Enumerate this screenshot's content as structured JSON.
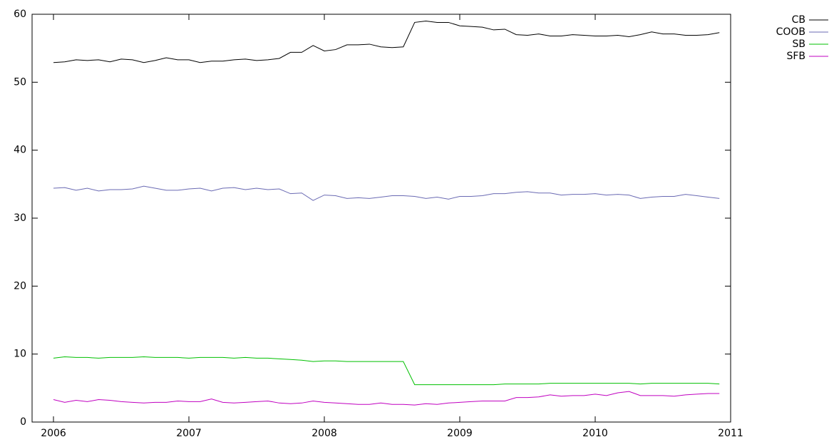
{
  "chart_data": {
    "type": "line",
    "x": [
      2006,
      2006.083,
      2006.167,
      2006.25,
      2006.333,
      2006.417,
      2006.5,
      2006.583,
      2006.667,
      2006.75,
      2006.833,
      2006.917,
      2007,
      2007.083,
      2007.167,
      2007.25,
      2007.333,
      2007.417,
      2007.5,
      2007.583,
      2007.667,
      2007.75,
      2007.833,
      2007.917,
      2008,
      2008.083,
      2008.167,
      2008.25,
      2008.333,
      2008.417,
      2008.5,
      2008.583,
      2008.667,
      2008.75,
      2008.833,
      2008.917,
      2009,
      2009.083,
      2009.167,
      2009.25,
      2009.333,
      2009.417,
      2009.5,
      2009.583,
      2009.667,
      2009.75,
      2009.833,
      2009.917,
      2010,
      2010.083,
      2010.167,
      2010.25,
      2010.333,
      2010.417,
      2010.5,
      2010.583,
      2010.667,
      2010.75,
      2010.833,
      2010.917
    ],
    "series": [
      {
        "name": "CB",
        "color": "#000000",
        "values": [
          52.9,
          53.0,
          53.3,
          53.2,
          53.3,
          53.0,
          53.4,
          53.3,
          52.9,
          53.2,
          53.6,
          53.3,
          53.3,
          52.9,
          53.1,
          53.1,
          53.3,
          53.4,
          53.2,
          53.3,
          53.5,
          54.4,
          54.4,
          55.4,
          54.6,
          54.8,
          55.5,
          55.5,
          55.6,
          55.2,
          55.1,
          55.2,
          58.8,
          59.0,
          58.8,
          58.8,
          58.3,
          58.2,
          58.1,
          57.7,
          57.8,
          57.0,
          56.9,
          57.1,
          56.8,
          56.8,
          57.0,
          56.9,
          56.8,
          56.8,
          56.9,
          56.7,
          57.0,
          57.4,
          57.1,
          57.1,
          56.9,
          56.9,
          57.0,
          57.3
        ]
      },
      {
        "name": "COOB",
        "color": "#6a6ab3",
        "values": [
          34.4,
          34.5,
          34.1,
          34.4,
          34.0,
          34.2,
          34.2,
          34.3,
          34.7,
          34.4,
          34.1,
          34.1,
          34.3,
          34.4,
          34.0,
          34.4,
          34.5,
          34.2,
          34.4,
          34.2,
          34.3,
          33.6,
          33.7,
          32.6,
          33.4,
          33.3,
          32.9,
          33.0,
          32.9,
          33.1,
          33.3,
          33.3,
          33.2,
          32.9,
          33.1,
          32.8,
          33.2,
          33.2,
          33.3,
          33.6,
          33.6,
          33.8,
          33.9,
          33.7,
          33.7,
          33.4,
          33.5,
          33.5,
          33.6,
          33.4,
          33.5,
          33.4,
          32.9,
          33.1,
          33.2,
          33.2,
          33.5,
          33.3,
          33.1,
          32.9
        ]
      },
      {
        "name": "SB",
        "color": "#00c000",
        "values": [
          9.4,
          9.6,
          9.5,
          9.5,
          9.4,
          9.5,
          9.5,
          9.5,
          9.6,
          9.5,
          9.5,
          9.5,
          9.4,
          9.5,
          9.5,
          9.5,
          9.4,
          9.5,
          9.4,
          9.4,
          9.3,
          9.2,
          9.1,
          8.9,
          9.0,
          9.0,
          8.9,
          8.9,
          8.9,
          8.9,
          8.9,
          8.9,
          5.5,
          5.5,
          5.5,
          5.5,
          5.5,
          5.5,
          5.5,
          5.5,
          5.6,
          5.6,
          5.6,
          5.6,
          5.7,
          5.7,
          5.7,
          5.7,
          5.7,
          5.7,
          5.7,
          5.7,
          5.6,
          5.7,
          5.7,
          5.7,
          5.7,
          5.7,
          5.7,
          5.6
        ]
      },
      {
        "name": "SFB",
        "color": "#c000c0",
        "values": [
          3.3,
          2.9,
          3.2,
          3.0,
          3.3,
          3.2,
          3.0,
          2.9,
          2.8,
          2.9,
          2.9,
          3.1,
          3.0,
          3.0,
          3.4,
          2.9,
          2.8,
          2.9,
          3.0,
          3.1,
          2.8,
          2.7,
          2.8,
          3.1,
          2.9,
          2.8,
          2.7,
          2.6,
          2.6,
          2.8,
          2.6,
          2.6,
          2.5,
          2.7,
          2.6,
          2.8,
          2.9,
          3.0,
          3.1,
          3.1,
          3.1,
          3.6,
          3.6,
          3.7,
          4.0,
          3.8,
          3.9,
          3.9,
          4.1,
          3.9,
          4.3,
          4.5,
          3.9,
          3.9,
          3.9,
          3.8,
          4.0,
          4.1,
          4.2,
          4.2
        ]
      }
    ],
    "xlim": [
      2005.842,
      2011
    ],
    "xticks": [
      2006,
      2007,
      2008,
      2009,
      2010,
      2011
    ],
    "ylim": [
      0,
      60
    ],
    "yticks": [
      0,
      10,
      20,
      30,
      40,
      50,
      60
    ],
    "grid": false,
    "legend": "outside-top-right"
  }
}
